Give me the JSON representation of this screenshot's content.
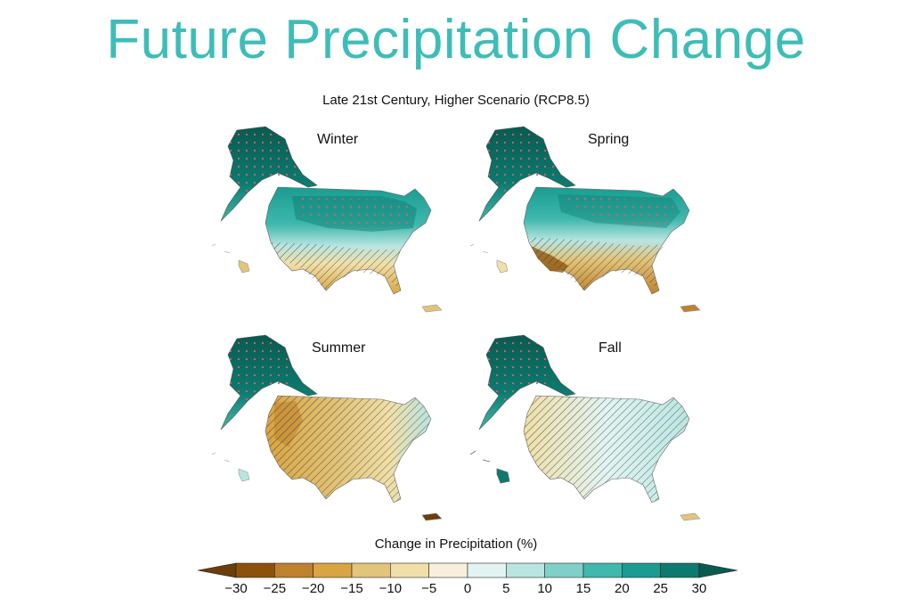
{
  "slide": {
    "title": "Future Precipitation Change"
  },
  "figure": {
    "subtitle": "Late 21st Century, Higher Scenario (RCP8.5)",
    "panels": [
      {
        "id": "winter",
        "label": "Winter"
      },
      {
        "id": "spring",
        "label": "Spring"
      },
      {
        "id": "summer",
        "label": "Summer"
      },
      {
        "id": "fall",
        "label": "Fall"
      }
    ]
  },
  "colorbar": {
    "title": "Change in Precipitation (%)",
    "ticks": [
      "−30",
      "−25",
      "−20",
      "−15",
      "−10",
      "−5",
      "0",
      "5",
      "10",
      "15",
      "20",
      "25",
      "30"
    ],
    "colors": [
      "#8c510a",
      "#bf812d",
      "#d9a441",
      "#e2c47a",
      "#f0dfa8",
      "#f8f0db",
      "#e2f4f2",
      "#b9e5e1",
      "#7fd0c8",
      "#3fb8ad",
      "#1a9c91",
      "#0c7a6e"
    ],
    "under_color": "#6b3d08",
    "over_color": "#0a5a50"
  }
}
